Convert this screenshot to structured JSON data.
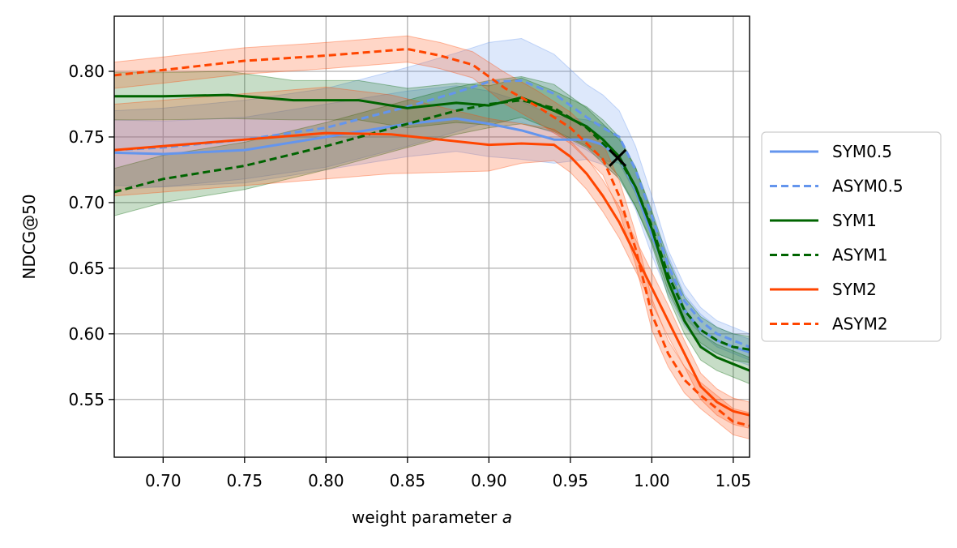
{
  "chart_data": {
    "type": "line",
    "title": "",
    "xlabel_prefix": "weight parameter ",
    "xlabel_var": "a",
    "ylabel": "NDCG@50",
    "xlim": [
      0.67,
      1.06
    ],
    "ylim": [
      0.506,
      0.842
    ],
    "xticks": [
      0.7,
      0.75,
      0.8,
      0.85,
      0.9,
      0.95,
      1.0,
      1.05
    ],
    "xtick_labels": [
      "0.70",
      "0.75",
      "0.80",
      "0.85",
      "0.90",
      "0.95",
      "1.00",
      "1.05"
    ],
    "yticks": [
      0.55,
      0.6,
      0.65,
      0.7,
      0.75,
      0.8
    ],
    "ytick_labels": [
      "0.55",
      "0.60",
      "0.65",
      "0.70",
      "0.75",
      "0.80"
    ],
    "grid": true,
    "legend_position": "outside-right",
    "marker": {
      "x": 0.979,
      "y": 0.734,
      "symbol": "x",
      "color": "#000000"
    },
    "series": [
      {
        "name": "SYM0.5",
        "color": "#6495ed",
        "dash": false,
        "band_opacity": 0.22,
        "x": [
          0.67,
          0.7,
          0.75,
          0.8,
          0.85,
          0.88,
          0.9,
          0.92,
          0.94,
          0.96,
          0.97,
          0.98,
          0.99,
          1.0,
          1.01,
          1.02,
          1.03,
          1.04,
          1.05,
          1.06
        ],
        "y": [
          0.738,
          0.737,
          0.74,
          0.75,
          0.76,
          0.764,
          0.76,
          0.755,
          0.748,
          0.748,
          0.744,
          0.734,
          0.71,
          0.675,
          0.645,
          0.618,
          0.603,
          0.595,
          0.59,
          0.586
        ],
        "band": [
          0.025,
          0.025,
          0.025,
          0.025,
          0.025,
          0.025,
          0.025,
          0.022,
          0.018,
          0.015,
          0.015,
          0.015,
          0.015,
          0.015,
          0.015,
          0.012,
          0.012,
          0.01,
          0.01,
          0.01
        ]
      },
      {
        "name": "ASYM0.5",
        "color": "#6495ed",
        "dash": true,
        "band_opacity": 0.22,
        "x": [
          0.67,
          0.7,
          0.75,
          0.8,
          0.85,
          0.88,
          0.9,
          0.92,
          0.94,
          0.96,
          0.97,
          0.98,
          0.99,
          1.0,
          1.01,
          1.02,
          1.03,
          1.04,
          1.05,
          1.06
        ],
        "y": [
          0.74,
          0.742,
          0.748,
          0.757,
          0.773,
          0.784,
          0.792,
          0.793,
          0.783,
          0.765,
          0.757,
          0.75,
          0.725,
          0.69,
          0.652,
          0.625,
          0.61,
          0.6,
          0.595,
          0.59
        ],
        "band": [
          0.03,
          0.03,
          0.03,
          0.03,
          0.03,
          0.03,
          0.03,
          0.032,
          0.03,
          0.025,
          0.025,
          0.02,
          0.018,
          0.015,
          0.012,
          0.012,
          0.01,
          0.01,
          0.01,
          0.01
        ]
      },
      {
        "name": "SYM1",
        "color": "#006400",
        "dash": false,
        "band_opacity": 0.22,
        "x": [
          0.67,
          0.7,
          0.74,
          0.78,
          0.82,
          0.85,
          0.88,
          0.9,
          0.92,
          0.94,
          0.96,
          0.97,
          0.98,
          0.99,
          1.0,
          1.01,
          1.02,
          1.03,
          1.04,
          1.05,
          1.06
        ],
        "y": [
          0.781,
          0.781,
          0.782,
          0.778,
          0.778,
          0.772,
          0.776,
          0.774,
          0.78,
          0.77,
          0.758,
          0.748,
          0.735,
          0.712,
          0.68,
          0.64,
          0.61,
          0.59,
          0.582,
          0.577,
          0.572
        ],
        "band": [
          0.018,
          0.018,
          0.018,
          0.015,
          0.015,
          0.015,
          0.015,
          0.015,
          0.015,
          0.015,
          0.015,
          0.015,
          0.015,
          0.015,
          0.012,
          0.012,
          0.01,
          0.01,
          0.01,
          0.01,
          0.01
        ]
      },
      {
        "name": "ASYM1",
        "color": "#006400",
        "dash": true,
        "band_opacity": 0.22,
        "x": [
          0.67,
          0.7,
          0.75,
          0.8,
          0.85,
          0.88,
          0.9,
          0.92,
          0.94,
          0.96,
          0.97,
          0.98,
          0.99,
          1.0,
          1.01,
          1.02,
          1.03,
          1.04,
          1.05,
          1.06
        ],
        "y": [
          0.708,
          0.718,
          0.728,
          0.743,
          0.76,
          0.77,
          0.775,
          0.778,
          0.772,
          0.757,
          0.745,
          0.733,
          0.712,
          0.682,
          0.645,
          0.618,
          0.603,
          0.595,
          0.59,
          0.588
        ],
        "band": [
          0.018,
          0.018,
          0.018,
          0.018,
          0.018,
          0.018,
          0.018,
          0.018,
          0.018,
          0.015,
          0.015,
          0.015,
          0.015,
          0.012,
          0.012,
          0.01,
          0.01,
          0.01,
          0.01,
          0.01
        ]
      },
      {
        "name": "SYM2",
        "color": "#ff4500",
        "dash": false,
        "band_opacity": 0.22,
        "x": [
          0.67,
          0.7,
          0.75,
          0.8,
          0.84,
          0.87,
          0.9,
          0.92,
          0.94,
          0.95,
          0.96,
          0.97,
          0.98,
          0.99,
          1.0,
          1.01,
          1.02,
          1.03,
          1.04,
          1.05,
          1.06
        ],
        "y": [
          0.74,
          0.743,
          0.748,
          0.753,
          0.752,
          0.748,
          0.744,
          0.745,
          0.744,
          0.735,
          0.722,
          0.705,
          0.685,
          0.66,
          0.635,
          0.61,
          0.585,
          0.56,
          0.548,
          0.541,
          0.538
        ],
        "band": [
          0.035,
          0.035,
          0.035,
          0.035,
          0.03,
          0.025,
          0.02,
          0.015,
          0.012,
          0.012,
          0.012,
          0.012,
          0.012,
          0.012,
          0.012,
          0.012,
          0.01,
          0.01,
          0.01,
          0.01,
          0.01
        ]
      },
      {
        "name": "ASYM2",
        "color": "#ff4500",
        "dash": true,
        "band_opacity": 0.22,
        "x": [
          0.67,
          0.7,
          0.75,
          0.8,
          0.83,
          0.85,
          0.87,
          0.89,
          0.91,
          0.93,
          0.95,
          0.96,
          0.97,
          0.98,
          0.99,
          1.0,
          1.01,
          1.02,
          1.03,
          1.04,
          1.05,
          1.06
        ],
        "y": [
          0.797,
          0.801,
          0.808,
          0.812,
          0.815,
          0.817,
          0.812,
          0.805,
          0.787,
          0.773,
          0.757,
          0.745,
          0.733,
          0.705,
          0.665,
          0.615,
          0.585,
          0.565,
          0.553,
          0.543,
          0.533,
          0.53
        ],
        "band": [
          0.01,
          0.01,
          0.01,
          0.01,
          0.01,
          0.01,
          0.01,
          0.01,
          0.012,
          0.012,
          0.012,
          0.012,
          0.012,
          0.012,
          0.012,
          0.012,
          0.01,
          0.01,
          0.01,
          0.01,
          0.01,
          0.01
        ]
      }
    ]
  }
}
